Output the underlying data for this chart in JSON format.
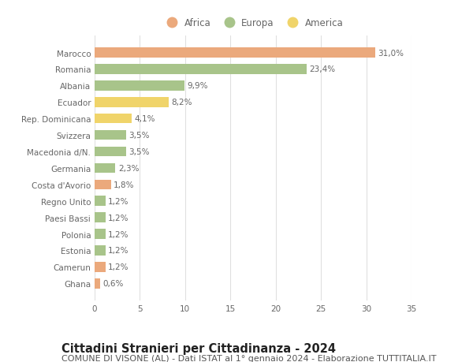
{
  "countries": [
    "Marocco",
    "Romania",
    "Albania",
    "Ecuador",
    "Rep. Dominicana",
    "Svizzera",
    "Macedonia d/N.",
    "Germania",
    "Costa d'Avorio",
    "Regno Unito",
    "Paesi Bassi",
    "Polonia",
    "Estonia",
    "Camerun",
    "Ghana"
  ],
  "values": [
    31.0,
    23.4,
    9.9,
    8.2,
    4.1,
    3.5,
    3.5,
    2.3,
    1.8,
    1.2,
    1.2,
    1.2,
    1.2,
    1.2,
    0.6
  ],
  "labels": [
    "31,0%",
    "23,4%",
    "9,9%",
    "8,2%",
    "4,1%",
    "3,5%",
    "3,5%",
    "2,3%",
    "1,8%",
    "1,2%",
    "1,2%",
    "1,2%",
    "1,2%",
    "1,2%",
    "0,6%"
  ],
  "continents": [
    "Africa",
    "Europa",
    "Europa",
    "America",
    "America",
    "Europa",
    "Europa",
    "Europa",
    "Africa",
    "Europa",
    "Europa",
    "Europa",
    "Europa",
    "Africa",
    "Africa"
  ],
  "colors": {
    "Africa": "#EBA97C",
    "Europa": "#A8C48A",
    "America": "#F0D46A"
  },
  "xlim": [
    0,
    35
  ],
  "xticks": [
    0,
    5,
    10,
    15,
    20,
    25,
    30,
    35
  ],
  "title": "Cittadini Stranieri per Cittadinanza - 2024",
  "subtitle": "COMUNE DI VISONE (AL) - Dati ISTAT al 1° gennaio 2024 - Elaborazione TUTTITALIA.IT",
  "background_color": "#ffffff",
  "grid_color": "#e0e0e0",
  "bar_height": 0.6,
  "title_fontsize": 10.5,
  "subtitle_fontsize": 8,
  "label_fontsize": 7.5,
  "tick_fontsize": 7.5,
  "legend_fontsize": 8.5
}
